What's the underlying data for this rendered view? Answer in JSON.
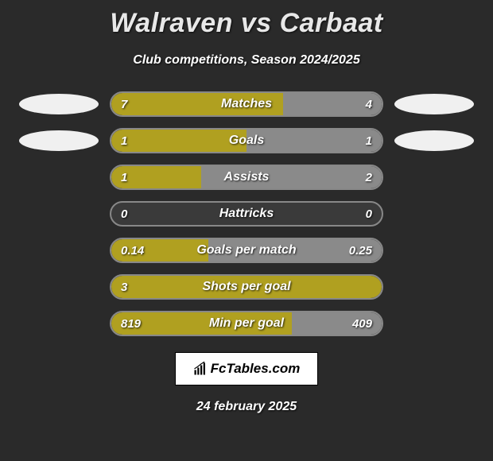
{
  "title": "Walraven vs Carbaat",
  "subtitle": "Club competitions, Season 2024/2025",
  "date": "24 february 2025",
  "logo_text": "FcTables.com",
  "colors": {
    "left": "#b0a020",
    "right": "#8a8a8a",
    "track_bg": "#3a3a3a",
    "track_border": "#888888",
    "page_bg": "#2a2a2a",
    "ellipse_bg": "#f0f0f0"
  },
  "stats": [
    {
      "label": "Matches",
      "left_val": "7",
      "right_val": "4",
      "left_pct": 63.6,
      "right_pct": 36.4,
      "show_ellipse": true
    },
    {
      "label": "Goals",
      "left_val": "1",
      "right_val": "1",
      "left_pct": 50,
      "right_pct": 50,
      "show_ellipse": true
    },
    {
      "label": "Assists",
      "left_val": "1",
      "right_val": "2",
      "left_pct": 33.3,
      "right_pct": 66.7,
      "show_ellipse": false
    },
    {
      "label": "Hattricks",
      "left_val": "0",
      "right_val": "0",
      "left_pct": 0,
      "right_pct": 0,
      "show_ellipse": false
    },
    {
      "label": "Goals per match",
      "left_val": "0.14",
      "right_val": "0.25",
      "left_pct": 35.9,
      "right_pct": 64.1,
      "show_ellipse": false
    },
    {
      "label": "Shots per goal",
      "left_val": "3",
      "right_val": "",
      "left_pct": 100,
      "right_pct": 0,
      "show_ellipse": false
    },
    {
      "label": "Min per goal",
      "left_val": "819",
      "right_val": "409",
      "left_pct": 66.7,
      "right_pct": 33.3,
      "show_ellipse": false
    }
  ]
}
